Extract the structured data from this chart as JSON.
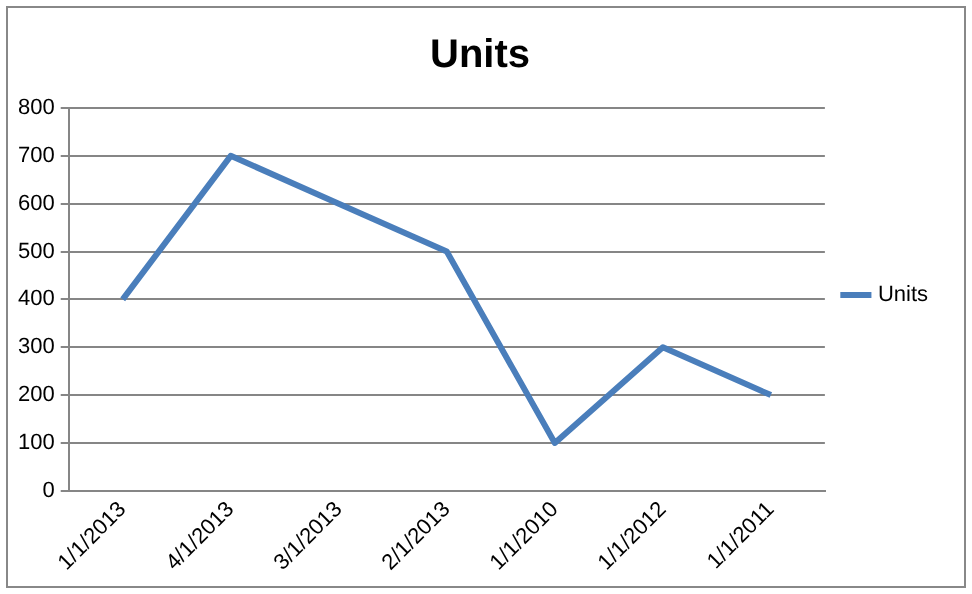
{
  "chart_data": {
    "type": "line",
    "title": "Units",
    "categories": [
      "1/1/2013",
      "4/1/2013",
      "3/1/2013",
      "2/1/2013",
      "1/1/2010",
      "1/1/2012",
      "1/1/2011"
    ],
    "series": [
      {
        "name": "Units",
        "color": "#4a7ebb",
        "values": [
          400,
          700,
          600,
          500,
          100,
          300,
          200
        ]
      }
    ],
    "ylim": [
      0,
      800
    ],
    "yticks": [
      0,
      100,
      200,
      300,
      400,
      500,
      600,
      700,
      800
    ],
    "grid": "y",
    "legend": "right",
    "marker": "none",
    "line_style": "solid"
  }
}
